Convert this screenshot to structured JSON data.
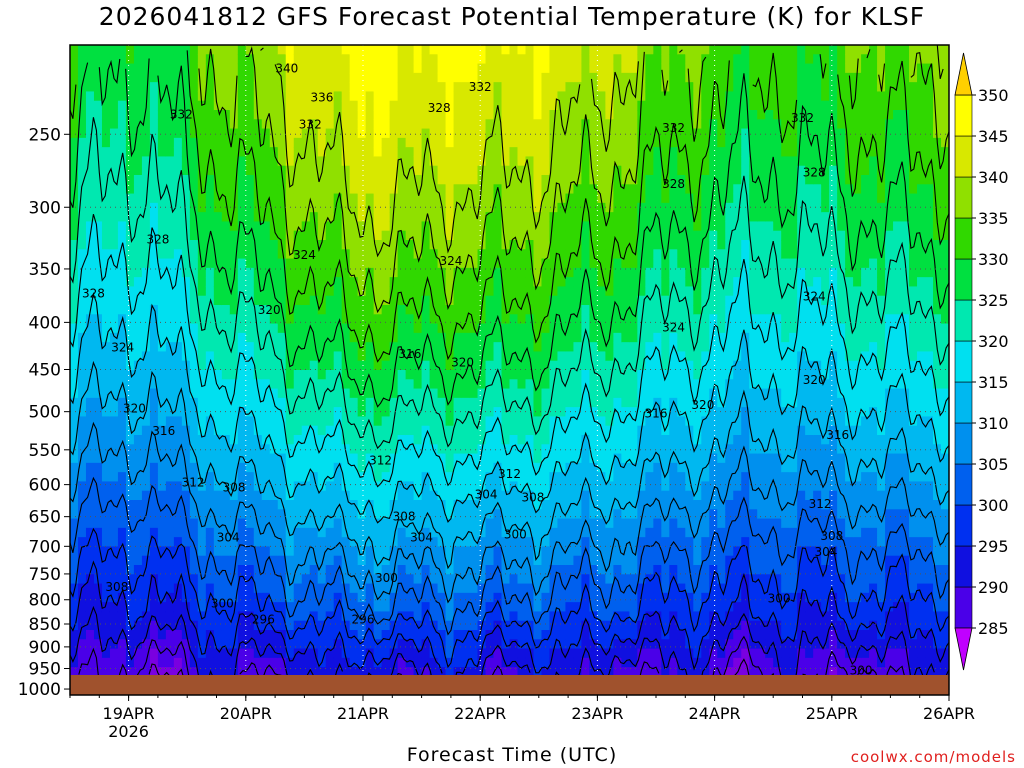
{
  "chart_data": {
    "type": "heatmap",
    "title": "2026041812 GFS Forecast Potential Temperature (K) for KLSF",
    "xlabel": "Forecast Time (UTC)",
    "ylabel": "",
    "credit": "coolwx.com/models",
    "x_tick_labels": [
      "19APR",
      "20APR",
      "21APR",
      "22APR",
      "23APR",
      "24APR",
      "25APR",
      "26APR"
    ],
    "x_year_label": "2026",
    "x_range_days": [
      -0.5,
      7.0
    ],
    "y_tick_labels": [
      "250",
      "300",
      "350",
      "400",
      "450",
      "500",
      "550",
      "600",
      "650",
      "700",
      "750",
      "800",
      "850",
      "900",
      "950",
      "1000"
    ],
    "y_range_hpa": [
      200,
      1015
    ],
    "ylog": true,
    "colorbar": {
      "levels": [
        285,
        290,
        295,
        300,
        305,
        310,
        315,
        320,
        325,
        330,
        335,
        340,
        345,
        350
      ],
      "labels": [
        "285",
        "290",
        "295",
        "300",
        "305",
        "310",
        "315",
        "320",
        "325",
        "330",
        "335",
        "340",
        "345",
        "350"
      ],
      "colors": [
        "#7a00e0",
        "#4a00e8",
        "#1010e0",
        "#0030f0",
        "#0060ee",
        "#0090ee",
        "#00b8f0",
        "#00e0f0",
        "#00e8b0",
        "#00e040",
        "#30d800",
        "#90e000",
        "#d8e800",
        "#ffff00"
      ],
      "over_color": "#ffd000",
      "under_color": "#c000ff"
    },
    "contour_step": 4,
    "contour_labels": [
      {
        "value": 340,
        "day": 1.35,
        "p": 212
      },
      {
        "value": 336,
        "day": 1.65,
        "p": 228
      },
      {
        "value": 332,
        "day": 0.45,
        "p": 238
      },
      {
        "value": 332,
        "day": 1.55,
        "p": 244
      },
      {
        "value": 328,
        "day": 2.65,
        "p": 234
      },
      {
        "value": 332,
        "day": 3.0,
        "p": 222
      },
      {
        "value": 332,
        "day": 4.65,
        "p": 246
      },
      {
        "value": 332,
        "day": 5.75,
        "p": 240
      },
      {
        "value": 328,
        "day": 4.65,
        "p": 283
      },
      {
        "value": 328,
        "day": 5.85,
        "p": 275
      },
      {
        "value": 328,
        "day": 0.25,
        "p": 325
      },
      {
        "value": 324,
        "day": 1.5,
        "p": 338
      },
      {
        "value": 324,
        "day": 2.75,
        "p": 343
      },
      {
        "value": 328,
        "day": -0.3,
        "p": 372
      },
      {
        "value": 324,
        "day": 5.85,
        "p": 375
      },
      {
        "value": 320,
        "day": 1.2,
        "p": 388
      },
      {
        "value": 324,
        "day": 4.65,
        "p": 405
      },
      {
        "value": 324,
        "day": -0.05,
        "p": 426
      },
      {
        "value": 316,
        "day": 2.4,
        "p": 433
      },
      {
        "value": 320,
        "day": 2.85,
        "p": 442
      },
      {
        "value": 320,
        "day": 5.85,
        "p": 462
      },
      {
        "value": 320,
        "day": 0.05,
        "p": 496
      },
      {
        "value": 316,
        "day": 4.5,
        "p": 502
      },
      {
        "value": 320,
        "day": 4.9,
        "p": 492
      },
      {
        "value": 316,
        "day": 0.3,
        "p": 525
      },
      {
        "value": 316,
        "day": 6.05,
        "p": 530
      },
      {
        "value": 312,
        "day": 2.15,
        "p": 565
      },
      {
        "value": 312,
        "day": 3.25,
        "p": 584
      },
      {
        "value": 312,
        "day": 0.55,
        "p": 597
      },
      {
        "value": 308,
        "day": 0.9,
        "p": 604
      },
      {
        "value": 304,
        "day": 3.05,
        "p": 615
      },
      {
        "value": 308,
        "day": 3.45,
        "p": 620
      },
      {
        "value": 312,
        "day": 5.9,
        "p": 630
      },
      {
        "value": 308,
        "day": 2.35,
        "p": 650
      },
      {
        "value": 308,
        "day": 6.0,
        "p": 682
      },
      {
        "value": 304,
        "day": 0.85,
        "p": 685
      },
      {
        "value": 304,
        "day": 2.5,
        "p": 685
      },
      {
        "value": 300,
        "day": 3.3,
        "p": 680
      },
      {
        "value": 304,
        "day": 5.95,
        "p": 710
      },
      {
        "value": 300,
        "day": 2.2,
        "p": 758
      },
      {
        "value": 308,
        "day": -0.1,
        "p": 775
      },
      {
        "value": 300,
        "day": 0.8,
        "p": 808
      },
      {
        "value": 296,
        "day": 1.15,
        "p": 840
      },
      {
        "value": 296,
        "day": 2.0,
        "p": 840
      },
      {
        "value": 300,
        "day": 5.55,
        "p": 798
      },
      {
        "value": 300,
        "day": 6.25,
        "p": 955
      }
    ]
  }
}
